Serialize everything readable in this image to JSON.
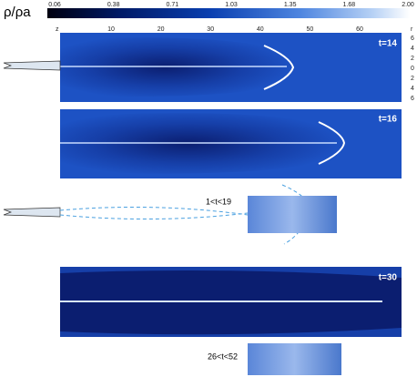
{
  "colorbar": {
    "label": "ρ/ρa",
    "ticks": [
      "0.06",
      "0.38",
      "0.71",
      "1.03",
      "1.35",
      "1.68",
      "2.00"
    ]
  },
  "z_axis": {
    "label": "z",
    "ticks": [
      "10",
      "20",
      "30",
      "40",
      "50",
      "60"
    ]
  },
  "r_axis": {
    "label": "r",
    "ticks": [
      "6",
      "4",
      "2",
      "0",
      "2",
      "4",
      "6"
    ]
  },
  "panels": [
    {
      "label": "t=14"
    },
    {
      "label": "t=16"
    },
    {
      "label": "1<t<19"
    },
    {
      "label": "t=30"
    },
    {
      "label": "26<t<52"
    }
  ]
}
